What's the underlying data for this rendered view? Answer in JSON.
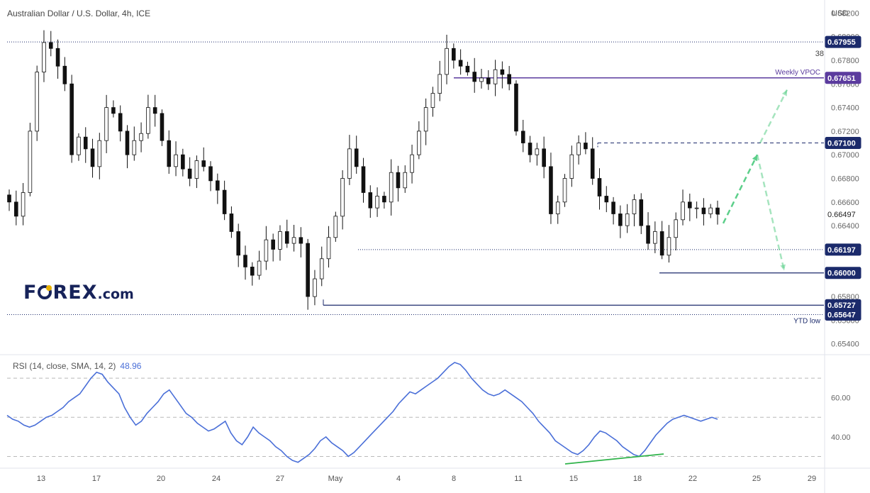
{
  "header": {
    "title": "Australian Dollar / U.S. Dollar, 4h, ICE",
    "currency": "USD",
    "label_38": "38"
  },
  "logo": {
    "text_before": "F",
    "text_after": "REX",
    "suffix": ".com"
  },
  "rsi": {
    "title": "RSI (14, close, SMA, 14, 2)",
    "value": "48.96"
  },
  "colors": {
    "line": "#4a6fd8",
    "purple": "#5b3b9e",
    "navy": "#1b2a6b",
    "arrow": "#5ccf8a",
    "divergence": "#2fb34a"
  },
  "chart_data": [
    {
      "type": "candlestick",
      "title": "Australian Dollar / U.S. Dollar, 4h, ICE",
      "ylim": [
        0.6532,
        0.6828
      ],
      "y_ticks": [
        "0.68200",
        "0.68000",
        "0.67800",
        "0.67600",
        "0.67400",
        "0.67200",
        "0.67000",
        "0.66800",
        "0.66600",
        "0.66400",
        "0.66200",
        "0.66000",
        "0.65800",
        "0.65600",
        "0.65400"
      ],
      "x_tick_labels": [
        "13",
        "17",
        "20",
        "24",
        "27",
        "May",
        "4",
        "8",
        "11",
        "15",
        "18",
        "22",
        "25",
        "29"
      ],
      "series_close": [
        0.666,
        0.6648,
        0.6668,
        0.672,
        0.677,
        0.6795,
        0.679,
        0.6775,
        0.676,
        0.67,
        0.6715,
        0.6705,
        0.669,
        0.6712,
        0.674,
        0.6735,
        0.672,
        0.67,
        0.6712,
        0.6718,
        0.674,
        0.6735,
        0.6712,
        0.669,
        0.67,
        0.6688,
        0.668,
        0.6695,
        0.669,
        0.6678,
        0.667,
        0.665,
        0.6635,
        0.6615,
        0.6605,
        0.6598,
        0.661,
        0.6628,
        0.662,
        0.6635,
        0.6625,
        0.663,
        0.6625,
        0.658,
        0.6595,
        0.6612,
        0.663,
        0.6648,
        0.668,
        0.6705,
        0.669,
        0.6668,
        0.6655,
        0.6665,
        0.666,
        0.6685,
        0.6672,
        0.6685,
        0.67,
        0.672,
        0.674,
        0.6752,
        0.6768,
        0.679,
        0.678,
        0.6775,
        0.677,
        0.6762,
        0.6765,
        0.676,
        0.6772,
        0.6768,
        0.676,
        0.672,
        0.671,
        0.67,
        0.6705,
        0.669,
        0.665,
        0.666,
        0.668,
        0.67,
        0.671,
        0.6705,
        0.668,
        0.6665,
        0.666,
        0.665,
        0.664,
        0.665,
        0.6662,
        0.664,
        0.6625,
        0.6635,
        0.6615,
        0.663,
        0.6645,
        0.666,
        0.6655,
        0.6655,
        0.665,
        0.6655,
        0.665
      ],
      "horizontal_levels": [
        {
          "label": "0.67955",
          "value": 0.67955,
          "style": "dotted"
        },
        {
          "label": "0.67651",
          "value": 0.67651,
          "style": "solid",
          "name": "Weekly VPOC"
        },
        {
          "label": "0.67100",
          "value": 0.671,
          "style": "dashed"
        },
        {
          "label": "0.66497",
          "value": 0.66497,
          "style": "current"
        },
        {
          "label": "0.66197",
          "value": 0.66197,
          "style": "dotted"
        },
        {
          "label": "0.66000",
          "value": 0.66,
          "style": "solid"
        },
        {
          "label": "0.65727",
          "value": 0.65727,
          "style": "solid"
        },
        {
          "label": "0.65647",
          "value": 0.65647,
          "style": "dotted",
          "name": "YTD low"
        }
      ],
      "annotations": [
        "Weekly VPOC",
        "YTD low"
      ],
      "grid": false
    },
    {
      "type": "line",
      "title": "RSI (14, close, SMA, 14, 2)",
      "ylim": [
        24,
        82
      ],
      "y_ticks": [
        "60.00",
        "40.00"
      ],
      "reference_levels": [
        70,
        50,
        30
      ],
      "values": [
        51,
        49,
        48,
        46,
        45,
        46,
        48,
        50,
        51,
        53,
        55,
        58,
        60,
        62,
        66,
        70,
        73,
        72,
        68,
        65,
        62,
        55,
        50,
        46,
        48,
        52,
        55,
        58,
        62,
        64,
        60,
        56,
        52,
        50,
        47,
        45,
        43,
        44,
        46,
        48,
        42,
        38,
        36,
        40,
        45,
        42,
        40,
        38,
        35,
        33,
        30,
        28,
        27,
        29,
        31,
        34,
        38,
        40,
        37,
        35,
        33,
        30,
        32,
        35,
        38,
        41,
        44,
        47,
        50,
        53,
        57,
        60,
        63,
        62,
        64,
        66,
        68,
        70,
        73,
        76,
        78,
        77,
        74,
        70,
        67,
        64,
        62,
        61,
        62,
        64,
        62,
        60,
        58,
        55,
        52,
        48,
        45,
        42,
        38,
        36,
        34,
        32,
        31,
        33,
        36,
        40,
        43,
        42,
        40,
        38,
        35,
        33,
        31,
        30,
        33,
        37,
        41,
        44,
        47,
        49,
        50,
        51,
        50,
        49,
        48,
        49,
        50,
        49
      ],
      "divergence_line": true
    }
  ],
  "price_axis": {
    "ticks": [
      "0.68200",
      "0.68000",
      "0.67800",
      "0.67600",
      "0.67400",
      "0.67200",
      "0.67000",
      "0.66800",
      "0.66600",
      "0.66400",
      "0.66200",
      "0.66000",
      "0.65800",
      "0.65600",
      "0.65400"
    ],
    "tags": [
      {
        "label": "0.67955",
        "value": 0.67955,
        "bg": "#1b2a6b",
        "fg": "#ffffff"
      },
      {
        "label": "0.67651",
        "value": 0.67651,
        "bg": "#5b3b9e",
        "fg": "#ffffff"
      },
      {
        "label": "0.67100",
        "value": 0.671,
        "bg": "#1b2a6b",
        "fg": "#ffffff"
      },
      {
        "label": "0.66497",
        "value": 0.66497,
        "bg": "#ffffff",
        "fg": "#222222"
      },
      {
        "label": "0.66197",
        "value": 0.66197,
        "bg": "#1b2a6b",
        "fg": "#ffffff"
      },
      {
        "label": "0.66000",
        "value": 0.66,
        "bg": "#1b2a6b",
        "fg": "#ffffff"
      },
      {
        "label": "0.65727",
        "value": 0.65727,
        "bg": "#1b2a6b",
        "fg": "#ffffff"
      },
      {
        "label": "0.65647",
        "value": 0.65647,
        "bg": "#1b2a6b",
        "fg": "#ffffff"
      }
    ]
  },
  "labels": {
    "vpoc": "Weekly VPOC",
    "ytd": "YTD low"
  }
}
